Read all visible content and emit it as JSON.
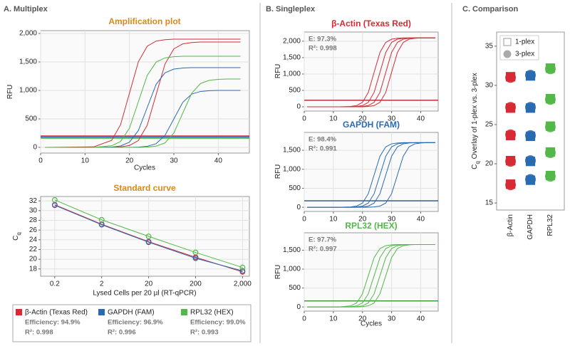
{
  "panels": [
    "A. Multiplex",
    "B. Singleplex",
    "C. Comparison"
  ],
  "chart_data": [
    {
      "type": "line",
      "title": "Amplification plot",
      "title_color": "#d9891c",
      "xlabel": "Cycles",
      "ylabel": {
        "main": "RFU"
      },
      "grid": true,
      "x": [
        1,
        12,
        16,
        18,
        20,
        22,
        24,
        26,
        28,
        30,
        32,
        34,
        36,
        38,
        40,
        42,
        45
      ],
      "xlim": [
        0,
        47
      ],
      "xticks": [
        0,
        10,
        20,
        30,
        40
      ],
      "ylim": [
        -100,
        2050
      ],
      "yticks": [
        0,
        500,
        {
          "value": 1000,
          "label": "1,000"
        },
        {
          "value": 1500,
          "label": "1,500"
        },
        {
          "value": 2000,
          "label": "2,000"
        }
      ],
      "thresholds": [
        {
          "color": "#d62b35",
          "value": 200
        },
        {
          "color": "#2a6ab1",
          "value": 180
        },
        {
          "color": "#52b848",
          "value": 160
        }
      ],
      "series": [
        {
          "color": "#d62b35",
          "values": [
            0,
            10,
            124,
            399,
            950,
            1501,
            1777,
            1866,
            1891,
            1900,
            1900,
            1900,
            1900,
            1900,
            1900,
            1900,
            1900
          ]
        },
        {
          "color": "#d62b35",
          "values": [
            0,
            0,
            0,
            9,
            33,
            120,
            389,
            925,
            1462,
            1730,
            1817,
            1841,
            1850,
            1850,
            1850,
            1850,
            1850
          ]
        },
        {
          "color": "#2a6ab1",
          "values": [
            0,
            0,
            7,
            25,
            91,
            294,
            700,
            1106,
            1309,
            1375,
            1393,
            1400,
            1400,
            1400,
            1400,
            1400,
            1400
          ]
        },
        {
          "color": "#2a6ab1",
          "values": [
            0,
            0,
            0,
            0,
            0,
            5,
            18,
            65,
            210,
            500,
            790,
            935,
            982,
            995,
            1000,
            1000,
            1000
          ]
        },
        {
          "color": "#52b848",
          "values": [
            0,
            0,
            29,
            104,
            336,
            800,
            1264,
            1496,
            1571,
            1592,
            1600,
            1600,
            1600,
            1600,
            1600,
            1600,
            1600
          ]
        },
        {
          "color": "#52b848",
          "values": [
            0,
            0,
            0,
            0,
            0,
            0,
            6,
            22,
            78,
            252,
            600,
            948,
            1122,
            1178,
            1194,
            1200,
            1200
          ]
        }
      ]
    },
    {
      "type": "scatter",
      "title": "Standard curve",
      "title_color": "#d9891c",
      "xlabel": "Lysed Cells per 20 µl (RT-qPCR)",
      "ylabel": {
        "main": "C",
        "sub": "q"
      },
      "xlog": true,
      "grid": true,
      "xlim": [
        0.1,
        2800
      ],
      "xticks": [
        0.2,
        2,
        20,
        200,
        {
          "value": 2000,
          "label": "2,000"
        }
      ],
      "ylim": [
        16.5,
        32.9
      ],
      "yticks": [
        18,
        20,
        22,
        24,
        26,
        28,
        30,
        32
      ],
      "x": [
        0.2,
        2,
        20,
        200,
        2000
      ],
      "series": [
        {
          "name": "β-Actin (Texas Red)",
          "color": "#d62b35",
          "efficiency": "Efficiency: 94.9%",
          "r2": "R²: 0.998",
          "values": [
            31.2,
            27.2,
            23.6,
            20.4,
            17.4
          ]
        },
        {
          "name": "GAPDH (FAM)",
          "color": "#2a6ab1",
          "efficiency": "Efficiency: 96.9%",
          "r2": "R²: 0.996",
          "values": [
            31.1,
            27.1,
            23.5,
            20.2,
            17.6
          ]
        },
        {
          "name": "RPL32 (HEX)",
          "color": "#52b848",
          "efficiency": "Efficiency: 99.0%",
          "r2": "R²: 0.993",
          "values": [
            32.2,
            28.1,
            24.7,
            21.4,
            18.3
          ]
        }
      ]
    },
    {
      "type": "line",
      "title": "β-Actin (Texas Red)",
      "title_color": "#d62b35",
      "ylabel": {
        "main": "RFU"
      },
      "stats": [
        "E: 97.3%",
        "R²: 0.998"
      ],
      "grid": true,
      "x": [
        1,
        12,
        16,
        18,
        20,
        22,
        24,
        26,
        28,
        30,
        32,
        34,
        36,
        38,
        40,
        42,
        45
      ],
      "xlim": [
        0,
        46
      ],
      "xticks": [
        0,
        10,
        20,
        30,
        40
      ],
      "ylim": [
        -130,
        2280
      ],
      "yticks": [
        0,
        500,
        {
          "value": 1000,
          "label": "1,000"
        },
        {
          "value": 1500,
          "label": "1,500"
        },
        {
          "value": 2000,
          "label": "2,000"
        }
      ],
      "thresholds": [
        {
          "color": "#b0202a",
          "value": 200
        }
      ],
      "series": [
        {
          "color": "#d62b35",
          "values": [
            0,
            0,
            11,
            38,
            137,
            441,
            1050,
            1659,
            1964,
            2062,
            2090,
            2100,
            2100,
            2100,
            2100,
            2100,
            2100
          ]
        },
        {
          "color": "#d62b35",
          "values": [
            0,
            0,
            0,
            11,
            38,
            137,
            441,
            1050,
            1659,
            1964,
            2062,
            2090,
            2100,
            2100,
            2100,
            2100,
            2100
          ]
        },
        {
          "color": "#d62b35",
          "values": [
            0,
            0,
            0,
            0,
            11,
            38,
            137,
            441,
            1050,
            1659,
            1964,
            2062,
            2090,
            2100,
            2100,
            2100,
            2100
          ]
        },
        {
          "color": "#d62b35",
          "values": [
            0,
            0,
            0,
            0,
            0,
            11,
            38,
            137,
            441,
            1050,
            1659,
            1964,
            2062,
            2090,
            2100,
            2100,
            2100
          ]
        }
      ]
    },
    {
      "type": "line",
      "title": "GAPDH (FAM)",
      "title_color": "#2a6ab1",
      "ylabel": {
        "main": "RFU"
      },
      "stats": [
        "E: 98.4%",
        "R²: 0.991"
      ],
      "grid": true,
      "x": [
        1,
        12,
        16,
        18,
        20,
        22,
        24,
        26,
        28,
        30,
        32,
        34,
        36,
        38,
        40,
        42,
        45
      ],
      "xlim": [
        0,
        46
      ],
      "xticks": [
        0,
        10,
        20,
        30,
        40
      ],
      "ylim": [
        -110,
        1970
      ],
      "yticks": [
        0,
        500,
        {
          "value": 1000,
          "label": "1,000"
        },
        {
          "value": 1500,
          "label": "1,500"
        }
      ],
      "thresholds": [
        {
          "color": "#1d4f8a",
          "value": 170
        }
      ],
      "series": [
        {
          "color": "#2a6ab1",
          "values": [
            0,
            0,
            9,
            31,
            111,
            357,
            850,
            1343,
            1590,
            1669,
            1692,
            1700,
            1700,
            1700,
            1700,
            1700,
            1700
          ]
        },
        {
          "color": "#2a6ab1",
          "values": [
            0,
            0,
            0,
            9,
            31,
            111,
            357,
            850,
            1343,
            1590,
            1669,
            1692,
            1700,
            1700,
            1700,
            1700,
            1700
          ]
        },
        {
          "color": "#2a6ab1",
          "values": [
            0,
            0,
            0,
            0,
            9,
            31,
            111,
            357,
            850,
            1343,
            1590,
            1669,
            1692,
            1700,
            1700,
            1700,
            1700
          ]
        },
        {
          "color": "#2a6ab1",
          "values": [
            0,
            0,
            0,
            0,
            0,
            0,
            9,
            31,
            111,
            357,
            850,
            1343,
            1590,
            1669,
            1692,
            1700,
            1700
          ]
        }
      ]
    },
    {
      "type": "line",
      "title": "RPL32 (HEX)",
      "title_color": "#52b848",
      "xlabel": "Cycles",
      "ylabel": {
        "main": "RFU"
      },
      "stats": [
        "E: 97.7%",
        "R²: 0.997"
      ],
      "grid": true,
      "x": [
        1,
        12,
        16,
        18,
        20,
        22,
        24,
        26,
        28,
        30,
        32,
        34,
        36,
        38,
        40,
        42,
        45
      ],
      "xlim": [
        0,
        46
      ],
      "xticks": [
        0,
        10,
        20,
        30,
        40
      ],
      "ylim": [
        -110,
        1960
      ],
      "yticks": [
        0,
        500,
        {
          "value": 1000,
          "label": "1,000"
        },
        {
          "value": 1500,
          "label": "1,500"
        }
      ],
      "thresholds": [
        {
          "color": "#3a8f33",
          "value": 160
        }
      ],
      "series": [
        {
          "color": "#52b848",
          "values": [
            0,
            0,
            30,
            107,
            347,
            825,
            1304,
            1543,
            1620,
            1642,
            1650,
            1650,
            1650,
            1650,
            1650,
            1650,
            1650
          ]
        },
        {
          "color": "#52b848",
          "values": [
            0,
            0,
            8,
            30,
            107,
            347,
            825,
            1304,
            1543,
            1620,
            1642,
            1650,
            1650,
            1650,
            1650,
            1650,
            1650
          ]
        },
        {
          "color": "#52b848",
          "values": [
            0,
            0,
            0,
            8,
            30,
            107,
            347,
            825,
            1304,
            1543,
            1620,
            1642,
            1650,
            1650,
            1650,
            1650,
            1650
          ]
        },
        {
          "color": "#52b848",
          "values": [
            0,
            0,
            0,
            0,
            8,
            30,
            107,
            347,
            825,
            1304,
            1543,
            1620,
            1642,
            1650,
            1650,
            1650,
            1650
          ]
        }
      ]
    },
    {
      "type": "strip",
      "ylabel": {
        "main": "C",
        "sub": "q",
        "rest": " Overlay of 1-plex vs. 3-plex"
      },
      "categories": [
        "β-Actin",
        "GAPDH",
        "RPL32"
      ],
      "colors": [
        "#d62b35",
        "#2a6ab1",
        "#52b848"
      ],
      "ylim": [
        14.1,
        36.8
      ],
      "yticks": [
        15,
        20,
        25,
        30,
        35
      ],
      "series": [
        {
          "name": "1-plex",
          "marker": "square",
          "values": [
            [
              31.1,
              27.1,
              23.6,
              20.4,
              17.4
            ],
            [
              31.2,
              27.1,
              23.5,
              20.3,
              17.9
            ],
            [
              32.2,
              28.3,
              24.8,
              21.5,
              18.5
            ]
          ]
        },
        {
          "name": "3-plex",
          "marker": "circle",
          "values": [
            [
              31.0,
              27.2,
              23.7,
              20.3,
              17.3
            ],
            [
              31.3,
              27.2,
              23.6,
              20.4,
              18.0
            ],
            [
              32.1,
              28.2,
              24.7,
              21.4,
              18.4
            ]
          ]
        }
      ]
    }
  ]
}
